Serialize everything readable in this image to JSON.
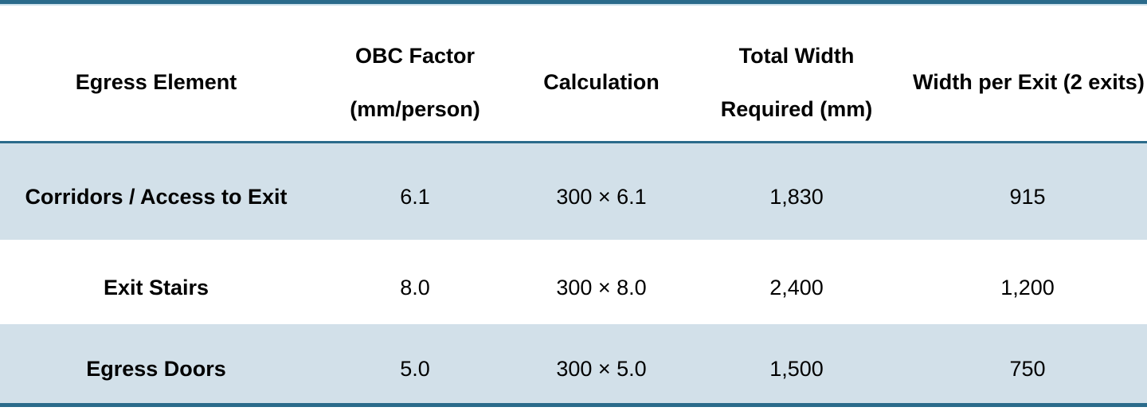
{
  "colors": {
    "accent": "#2B6B8B",
    "row_alt_bg": "#D2E0E9",
    "row_bg": "#FFFFFF",
    "text": "#000000",
    "top_rule_shade": "#CFE2EC"
  },
  "table": {
    "headers": [
      {
        "lines": [
          "Egress Element"
        ]
      },
      {
        "lines": [
          "OBC Factor",
          "(mm/person)"
        ]
      },
      {
        "lines": [
          "Calculation"
        ]
      },
      {
        "lines": [
          "Total Width",
          "Required (mm)"
        ]
      },
      {
        "lines": [
          "Width per Exit (2 exits)"
        ]
      }
    ],
    "rows": [
      {
        "cells": [
          "Corridors / Access to Exit",
          "6.1",
          "300 × 6.1",
          "1,830",
          "915"
        ]
      },
      {
        "cells": [
          "Exit Stairs",
          "8.0",
          "300 × 8.0",
          "2,400",
          "1,200"
        ]
      },
      {
        "cells": [
          "Egress Doors",
          "5.0",
          "300 × 5.0",
          "1,500",
          "750"
        ]
      }
    ]
  },
  "chart_data": {
    "type": "table",
    "columns": [
      "Egress Element",
      "OBC Factor (mm/person)",
      "Calculation",
      "Total Width Required (mm)",
      "Width per Exit (2 exits)"
    ],
    "rows": [
      [
        "Corridors / Access to Exit",
        6.1,
        "300 × 6.1",
        1830,
        915
      ],
      [
        "Exit Stairs",
        8.0,
        "300 × 8.0",
        2400,
        1200
      ],
      [
        "Egress Doors",
        5.0,
        "300 × 5.0",
        1500,
        750
      ]
    ],
    "layout": {
      "alternating_row_shading": true,
      "shaded_rows": [
        1,
        3
      ],
      "accent_rules": [
        "top",
        "below-header",
        "bottom"
      ]
    }
  }
}
